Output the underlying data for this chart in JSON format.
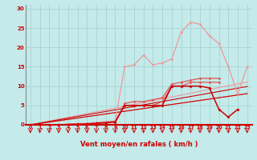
{
  "xlabel": "Vent moyen/en rafales ( km/h )",
  "xlim": [
    -0.5,
    23.5
  ],
  "ylim": [
    0,
    31
  ],
  "yticks": [
    0,
    5,
    10,
    15,
    20,
    25,
    30
  ],
  "xticks": [
    0,
    1,
    2,
    3,
    4,
    5,
    6,
    7,
    8,
    9,
    10,
    11,
    12,
    13,
    14,
    15,
    16,
    17,
    18,
    19,
    20,
    21,
    22,
    23
  ],
  "bg_color": "#c4eaea",
  "grid_color": "#a8d4d4",
  "dark_red": "#cc0000",
  "mid_red": "#dd5555",
  "light_red": "#ee9999",
  "x_all": [
    0,
    1,
    2,
    3,
    4,
    5,
    6,
    7,
    8,
    9,
    10,
    11,
    12,
    13,
    14,
    15,
    16,
    17,
    18,
    19,
    20,
    21,
    22,
    23
  ],
  "light_linear1": [
    0,
    0.48,
    0.96,
    1.44,
    1.92,
    2.4,
    2.88,
    3.36,
    3.84,
    4.32,
    4.8,
    5.28,
    5.76,
    6.24,
    6.72,
    7.2,
    7.68,
    8.16,
    8.64,
    9.12,
    9.6,
    10.08,
    10.56,
    11.04
  ],
  "light_linear2": [
    0,
    0.35,
    0.7,
    1.05,
    1.4,
    1.75,
    2.1,
    2.45,
    2.8,
    3.15,
    3.5,
    3.85,
    4.2,
    4.55,
    4.9,
    5.25,
    5.6,
    5.95,
    6.3,
    6.65,
    7.0,
    7.35,
    7.7,
    8.05
  ],
  "light_series_x": [
    0,
    1,
    2,
    3,
    4,
    5,
    6,
    7,
    8,
    9,
    10,
    11,
    12,
    13,
    14,
    15,
    16,
    17,
    18,
    19,
    20,
    21,
    22,
    23
  ],
  "light_series_y": [
    0,
    0,
    0,
    0,
    0.2,
    0.3,
    0.4,
    0.6,
    0.8,
    1.0,
    15,
    15.5,
    18,
    15.5,
    16,
    17,
    24,
    26.5,
    26,
    23,
    21,
    15,
    8,
    15
  ],
  "mid_series1_x": [
    0,
    1,
    2,
    3,
    4,
    5,
    6,
    7,
    8,
    9,
    10,
    11,
    12,
    13,
    14,
    15,
    16,
    17,
    18,
    19,
    20
  ],
  "mid_series1_y": [
    0,
    0,
    0,
    0,
    0.1,
    0.2,
    0.3,
    0.5,
    0.7,
    0.9,
    5.5,
    6,
    6,
    6.5,
    7,
    10.5,
    11,
    11.5,
    12,
    12,
    12
  ],
  "mid_series2_x": [
    0,
    1,
    2,
    3,
    4,
    5,
    6,
    7,
    8,
    9,
    10,
    11,
    12,
    13,
    14,
    15,
    16,
    17,
    18,
    19,
    20
  ],
  "mid_series2_y": [
    0,
    0,
    0,
    0,
    0.1,
    0.15,
    0.25,
    0.4,
    0.6,
    0.8,
    5,
    5,
    5,
    5,
    6,
    10,
    10,
    11,
    11,
    11,
    11
  ],
  "dark_series_x": [
    0,
    1,
    2,
    3,
    4,
    5,
    6,
    7,
    8,
    9,
    10,
    11,
    12,
    13,
    14,
    15,
    16,
    17,
    18,
    19,
    20,
    21,
    22
  ],
  "dark_series_y": [
    0,
    0,
    0,
    0,
    0.1,
    0.15,
    0.2,
    0.35,
    0.5,
    0.7,
    5,
    5,
    5,
    5,
    5,
    10,
    10,
    10,
    10,
    9.5,
    4,
    2,
    4
  ],
  "dark_linear1": [
    0,
    0.43,
    0.86,
    1.29,
    1.72,
    2.15,
    2.58,
    3.01,
    3.44,
    3.87,
    4.3,
    4.73,
    5.16,
    5.59,
    6.02,
    6.45,
    6.88,
    7.31,
    7.74,
    8.17,
    8.6,
    9.03,
    9.46,
    9.89
  ],
  "dark_linear2": [
    0,
    0.35,
    0.7,
    1.05,
    1.4,
    1.75,
    2.1,
    2.45,
    2.8,
    3.15,
    3.5,
    3.85,
    4.2,
    4.55,
    4.9,
    5.25,
    5.6,
    5.95,
    6.3,
    6.65,
    7.0,
    7.35,
    7.7,
    8.05
  ]
}
